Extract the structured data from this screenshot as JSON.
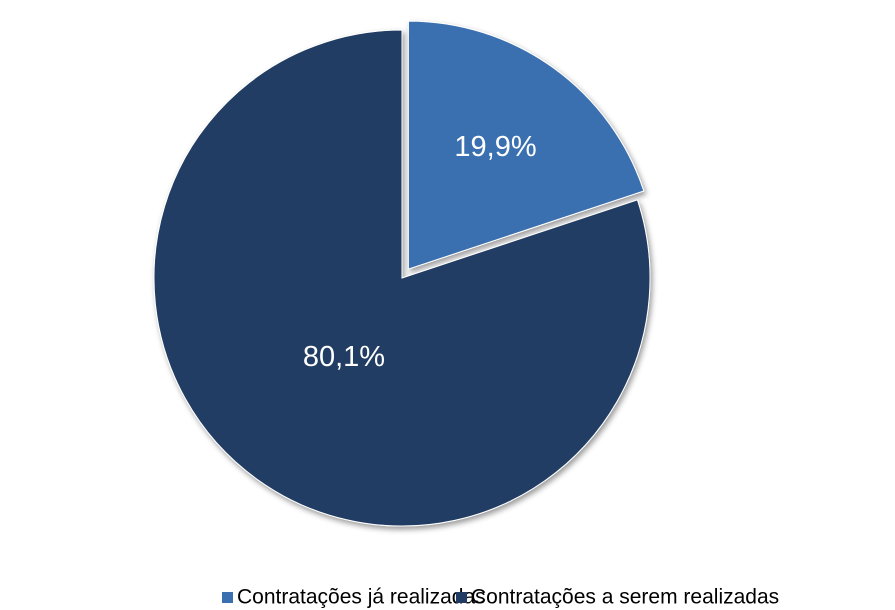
{
  "chart_data": {
    "type": "pie",
    "categories": [
      "Contratações já realizadas",
      "Contratações a serem realizadas"
    ],
    "values": [
      19.9,
      80.1
    ],
    "value_labels": [
      "19,9%",
      "80,1%"
    ],
    "colors": [
      "#3b6fb0",
      "#203c64"
    ],
    "legend": "bottom"
  }
}
